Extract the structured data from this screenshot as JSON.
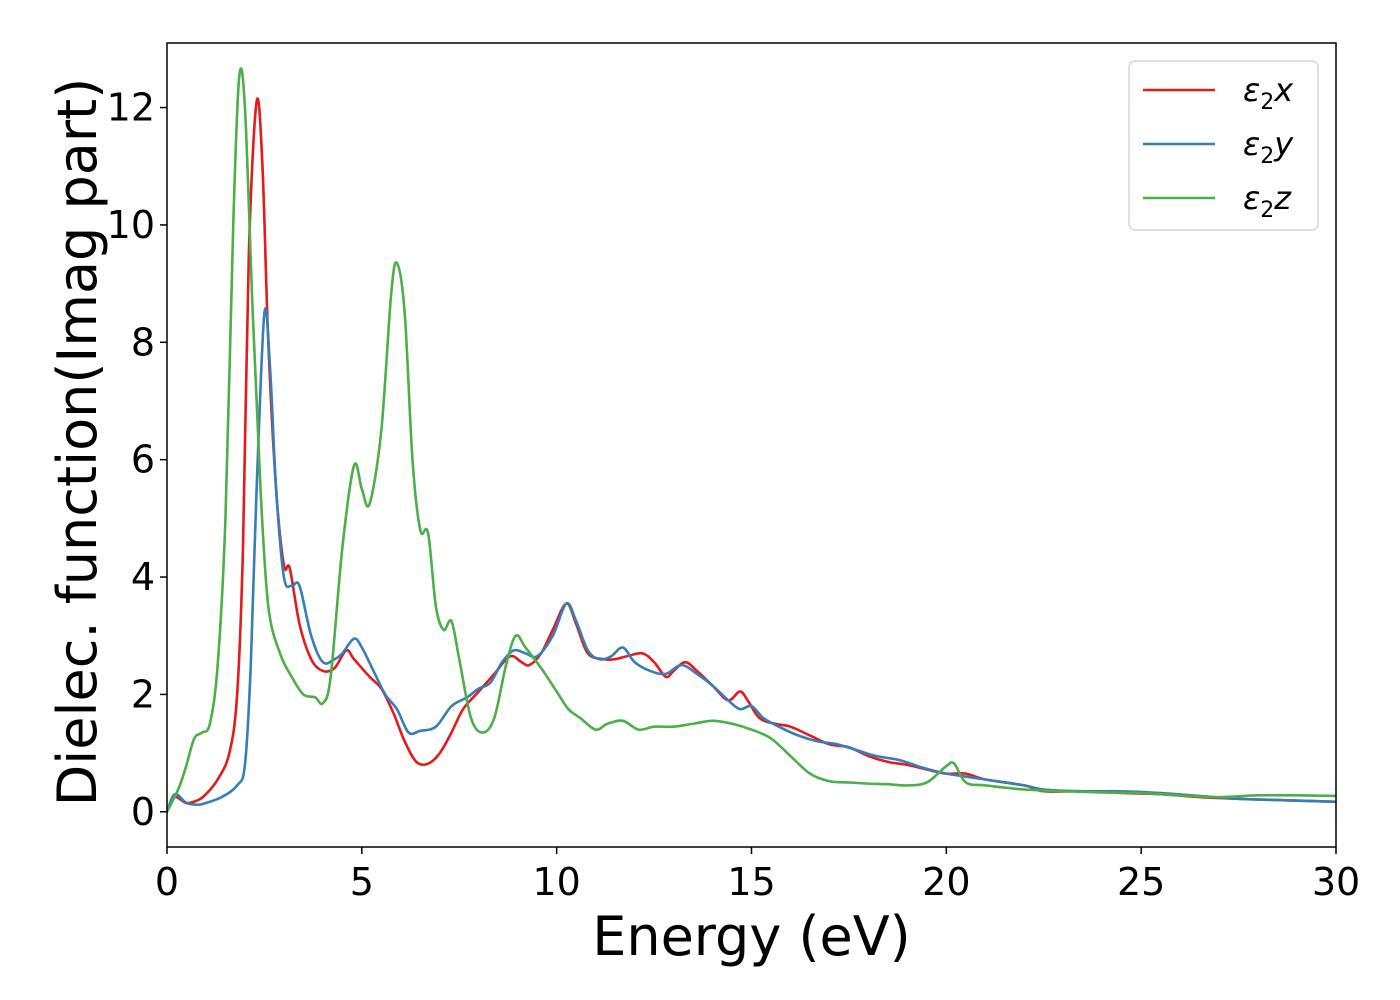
{
  "chart_data": {
    "type": "line",
    "xlabel": "Energy (eV)",
    "ylabel": "Dielec. function(Imag part)",
    "xlim": [
      0,
      30
    ],
    "ylim": [
      -0.6,
      13.1
    ],
    "x_ticks": [
      0,
      5,
      10,
      15,
      20,
      25,
      30
    ],
    "y_ticks": [
      0,
      2,
      4,
      6,
      8,
      10,
      12
    ],
    "grid": false,
    "legend_position": "top-right",
    "series": [
      {
        "name": "ε2x",
        "label_main": "ε",
        "label_sub": "2",
        "label_suffix": "x",
        "color": "#e41a1c",
        "points": [
          [
            0,
            0
          ],
          [
            0.2,
            0.25
          ],
          [
            0.5,
            0.15
          ],
          [
            0.8,
            0.2
          ],
          [
            1.0,
            0.3
          ],
          [
            1.3,
            0.55
          ],
          [
            1.6,
            1.0
          ],
          [
            1.8,
            2.0
          ],
          [
            1.95,
            4.5
          ],
          [
            2.1,
            9.5
          ],
          [
            2.3,
            12.1
          ],
          [
            2.45,
            11.0
          ],
          [
            2.6,
            8.0
          ],
          [
            2.8,
            5.5
          ],
          [
            3.0,
            4.2
          ],
          [
            3.15,
            4.15
          ],
          [
            3.4,
            3.2
          ],
          [
            3.7,
            2.6
          ],
          [
            4.0,
            2.4
          ],
          [
            4.3,
            2.45
          ],
          [
            4.6,
            2.75
          ],
          [
            4.8,
            2.6
          ],
          [
            5.2,
            2.3
          ],
          [
            5.5,
            2.1
          ],
          [
            5.8,
            1.7
          ],
          [
            6.1,
            1.2
          ],
          [
            6.4,
            0.85
          ],
          [
            6.7,
            0.82
          ],
          [
            7.0,
            1.0
          ],
          [
            7.3,
            1.35
          ],
          [
            7.6,
            1.75
          ],
          [
            8.0,
            2.05
          ],
          [
            8.4,
            2.35
          ],
          [
            8.8,
            2.65
          ],
          [
            9.1,
            2.55
          ],
          [
            9.3,
            2.5
          ],
          [
            9.6,
            2.7
          ],
          [
            9.9,
            3.1
          ],
          [
            10.25,
            3.55
          ],
          [
            10.5,
            3.2
          ],
          [
            10.8,
            2.7
          ],
          [
            11.2,
            2.6
          ],
          [
            11.5,
            2.6
          ],
          [
            11.8,
            2.65
          ],
          [
            12.2,
            2.7
          ],
          [
            12.5,
            2.55
          ],
          [
            12.8,
            2.3
          ],
          [
            13.0,
            2.4
          ],
          [
            13.3,
            2.55
          ],
          [
            13.6,
            2.4
          ],
          [
            14.0,
            2.15
          ],
          [
            14.4,
            1.9
          ],
          [
            14.7,
            2.05
          ],
          [
            14.9,
            1.9
          ],
          [
            15.2,
            1.6
          ],
          [
            15.6,
            1.5
          ],
          [
            16.0,
            1.45
          ],
          [
            16.5,
            1.3
          ],
          [
            17.0,
            1.15
          ],
          [
            17.5,
            1.1
          ],
          [
            18.0,
            0.95
          ],
          [
            18.5,
            0.85
          ],
          [
            19.0,
            0.8
          ],
          [
            19.5,
            0.72
          ],
          [
            20.0,
            0.65
          ],
          [
            20.5,
            0.65
          ],
          [
            21.0,
            0.55
          ],
          [
            22.0,
            0.45
          ],
          [
            22.5,
            0.35
          ],
          [
            23.5,
            0.35
          ],
          [
            24.5,
            0.32
          ],
          [
            25.5,
            0.3
          ],
          [
            26.5,
            0.25
          ],
          [
            27.5,
            0.22
          ],
          [
            28.5,
            0.2
          ],
          [
            29.5,
            0.18
          ],
          [
            30,
            0.17
          ]
        ]
      },
      {
        "name": "ε2y",
        "label_main": "ε",
        "label_sub": "2",
        "label_suffix": "y",
        "color": "#377eb8",
        "points": [
          [
            0,
            0
          ],
          [
            0.2,
            0.3
          ],
          [
            0.5,
            0.15
          ],
          [
            0.8,
            0.12
          ],
          [
            1.0,
            0.15
          ],
          [
            1.4,
            0.25
          ],
          [
            1.8,
            0.45
          ],
          [
            2.0,
            0.8
          ],
          [
            2.15,
            2.5
          ],
          [
            2.3,
            5.5
          ],
          [
            2.5,
            8.5
          ],
          [
            2.65,
            7.5
          ],
          [
            2.8,
            5.5
          ],
          [
            3.0,
            4.0
          ],
          [
            3.2,
            3.85
          ],
          [
            3.4,
            3.85
          ],
          [
            3.7,
            3.0
          ],
          [
            4.0,
            2.55
          ],
          [
            4.3,
            2.6
          ],
          [
            4.5,
            2.7
          ],
          [
            4.8,
            2.95
          ],
          [
            5.0,
            2.8
          ],
          [
            5.3,
            2.4
          ],
          [
            5.6,
            2.0
          ],
          [
            5.9,
            1.75
          ],
          [
            6.2,
            1.35
          ],
          [
            6.5,
            1.38
          ],
          [
            6.9,
            1.45
          ],
          [
            7.3,
            1.8
          ],
          [
            7.7,
            1.95
          ],
          [
            8.0,
            2.1
          ],
          [
            8.3,
            2.2
          ],
          [
            8.6,
            2.55
          ],
          [
            8.9,
            2.75
          ],
          [
            9.2,
            2.7
          ],
          [
            9.5,
            2.65
          ],
          [
            9.9,
            3.0
          ],
          [
            10.25,
            3.55
          ],
          [
            10.5,
            3.25
          ],
          [
            10.8,
            2.75
          ],
          [
            11.1,
            2.6
          ],
          [
            11.4,
            2.65
          ],
          [
            11.7,
            2.8
          ],
          [
            12.0,
            2.55
          ],
          [
            12.4,
            2.4
          ],
          [
            12.8,
            2.35
          ],
          [
            13.2,
            2.5
          ],
          [
            13.6,
            2.35
          ],
          [
            14.0,
            2.15
          ],
          [
            14.4,
            1.9
          ],
          [
            14.7,
            1.75
          ],
          [
            15.0,
            1.8
          ],
          [
            15.3,
            1.6
          ],
          [
            15.7,
            1.45
          ],
          [
            16.2,
            1.3
          ],
          [
            16.7,
            1.2
          ],
          [
            17.2,
            1.15
          ],
          [
            17.7,
            1.05
          ],
          [
            18.2,
            0.95
          ],
          [
            18.8,
            0.88
          ],
          [
            19.4,
            0.75
          ],
          [
            20.0,
            0.65
          ],
          [
            20.5,
            0.6
          ],
          [
            21.0,
            0.55
          ],
          [
            22.0,
            0.45
          ],
          [
            22.5,
            0.38
          ],
          [
            23.5,
            0.35
          ],
          [
            24.5,
            0.35
          ],
          [
            25.5,
            0.32
          ],
          [
            26.5,
            0.27
          ],
          [
            27.5,
            0.22
          ],
          [
            28.5,
            0.2
          ],
          [
            29.5,
            0.18
          ],
          [
            30,
            0.17
          ]
        ]
      },
      {
        "name": "ε2z",
        "label_main": "ε",
        "label_sub": "2",
        "label_suffix": "z",
        "color": "#4daf4a",
        "points": [
          [
            0,
            0
          ],
          [
            0.3,
            0.4
          ],
          [
            0.5,
            0.8
          ],
          [
            0.7,
            1.25
          ],
          [
            0.9,
            1.35
          ],
          [
            1.1,
            1.5
          ],
          [
            1.3,
            2.5
          ],
          [
            1.5,
            5.0
          ],
          [
            1.7,
            10.0
          ],
          [
            1.85,
            12.5
          ],
          [
            2.0,
            12.0
          ],
          [
            2.2,
            8.5
          ],
          [
            2.4,
            5.5
          ],
          [
            2.6,
            3.5
          ],
          [
            2.9,
            2.7
          ],
          [
            3.2,
            2.3
          ],
          [
            3.5,
            2.0
          ],
          [
            3.8,
            1.95
          ],
          [
            4.0,
            1.85
          ],
          [
            4.2,
            2.3
          ],
          [
            4.5,
            4.5
          ],
          [
            4.8,
            5.9
          ],
          [
            5.0,
            5.5
          ],
          [
            5.2,
            5.25
          ],
          [
            5.5,
            6.5
          ],
          [
            5.75,
            8.8
          ],
          [
            5.9,
            9.35
          ],
          [
            6.1,
            8.5
          ],
          [
            6.3,
            6.0
          ],
          [
            6.5,
            4.8
          ],
          [
            6.7,
            4.75
          ],
          [
            6.9,
            3.5
          ],
          [
            7.1,
            3.1
          ],
          [
            7.3,
            3.25
          ],
          [
            7.5,
            2.6
          ],
          [
            7.8,
            1.6
          ],
          [
            8.1,
            1.35
          ],
          [
            8.4,
            1.6
          ],
          [
            8.7,
            2.5
          ],
          [
            8.95,
            3.0
          ],
          [
            9.2,
            2.8
          ],
          [
            9.6,
            2.45
          ],
          [
            10.0,
            2.05
          ],
          [
            10.3,
            1.75
          ],
          [
            10.6,
            1.6
          ],
          [
            11.0,
            1.4
          ],
          [
            11.3,
            1.5
          ],
          [
            11.7,
            1.55
          ],
          [
            12.1,
            1.4
          ],
          [
            12.5,
            1.45
          ],
          [
            13.0,
            1.45
          ],
          [
            13.5,
            1.5
          ],
          [
            14.0,
            1.55
          ],
          [
            14.5,
            1.5
          ],
          [
            15.0,
            1.4
          ],
          [
            15.5,
            1.25
          ],
          [
            16.0,
            0.95
          ],
          [
            16.5,
            0.65
          ],
          [
            17.0,
            0.52
          ],
          [
            17.5,
            0.5
          ],
          [
            18.0,
            0.48
          ],
          [
            18.5,
            0.47
          ],
          [
            19.0,
            0.45
          ],
          [
            19.5,
            0.5
          ],
          [
            20.0,
            0.78
          ],
          [
            20.2,
            0.82
          ],
          [
            20.5,
            0.5
          ],
          [
            21.0,
            0.45
          ],
          [
            22.0,
            0.38
          ],
          [
            23.0,
            0.35
          ],
          [
            24.0,
            0.33
          ],
          [
            25.0,
            0.32
          ],
          [
            26.0,
            0.28
          ],
          [
            27.0,
            0.25
          ],
          [
            28.0,
            0.28
          ],
          [
            29.0,
            0.28
          ],
          [
            30,
            0.27
          ]
        ]
      }
    ]
  }
}
